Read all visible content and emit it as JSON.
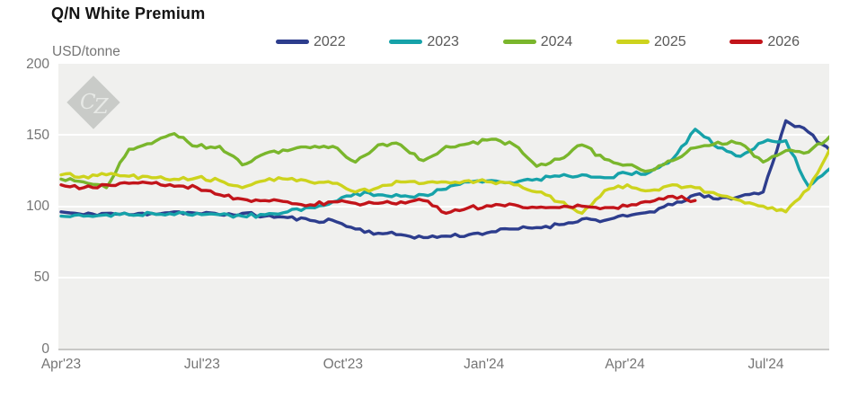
{
  "header": {
    "title": "Q/N White Premium"
  },
  "chart_data": {
    "type": "line",
    "title": "Q/N White Premium",
    "xlabel": "",
    "ylabel": "USD/tonne",
    "ylim": [
      0,
      200
    ],
    "yticks": [
      0,
      50,
      100,
      150,
      200
    ],
    "grid": "horizontal white gridlines on light-gray plot background",
    "legend_position": "top",
    "watermark": "CZ",
    "x_axis": {
      "tick_labels": [
        "Apr'23",
        "Jul'23",
        "Oct'23",
        "Jan'24",
        "Apr'24",
        "Jul'24"
      ],
      "tick_months": [
        0,
        3,
        6,
        9,
        12,
        15
      ],
      "plot_span_months": 16.4
    },
    "sampling": {
      "start_month": 0,
      "interval_months": 0.482,
      "unit": "months since Apr 2023"
    },
    "series": [
      {
        "name": "2022",
        "color": "#2d3d8d",
        "values": [
          96,
          94,
          95,
          94,
          95,
          96,
          95,
          94,
          95,
          93,
          92,
          90,
          90,
          84,
          81,
          80,
          78,
          79,
          80,
          82,
          84,
          85,
          87,
          91,
          90,
          93,
          96,
          101,
          108,
          105,
          107,
          110,
          160,
          152,
          138
        ]
      },
      {
        "name": "2023",
        "color": "#16a2a9",
        "values": [
          93,
          93,
          94,
          94,
          95,
          94,
          95,
          94,
          93,
          94,
          96,
          99,
          103,
          109,
          108,
          107,
          108,
          112,
          117,
          118,
          116,
          119,
          121,
          122,
          120,
          123,
          124,
          133,
          154,
          141,
          135,
          145,
          146,
          114,
          127
        ]
      },
      {
        "name": "2024",
        "color": "#7ab62c",
        "values": [
          119,
          117,
          113,
          140,
          144,
          151,
          142,
          142,
          129,
          137,
          139,
          141,
          142,
          131,
          143,
          143,
          132,
          142,
          144,
          147,
          143,
          128,
          133,
          143,
          133,
          129,
          125,
          132,
          141,
          145,
          144,
          131,
          139,
          138,
          150
        ]
      },
      {
        "name": "2025",
        "color": "#cdd31d",
        "values": [
          122,
          121,
          122,
          121,
          120,
          119,
          120,
          118,
          113,
          118,
          119,
          117,
          116,
          110,
          113,
          117,
          116,
          117,
          118,
          117,
          115,
          110,
          103,
          95,
          111,
          115,
          111,
          115,
          113,
          108,
          104,
          100,
          96,
          112,
          142
        ]
      },
      {
        "name": "2026",
        "color": "#c2141a",
        "values": [
          115,
          113,
          115,
          116,
          116,
          114,
          113,
          108,
          105,
          104,
          103,
          101,
          103,
          102,
          102,
          103,
          104,
          95,
          99,
          100,
          101,
          99,
          99,
          100,
          99,
          100,
          103,
          107,
          104
        ]
      }
    ]
  }
}
